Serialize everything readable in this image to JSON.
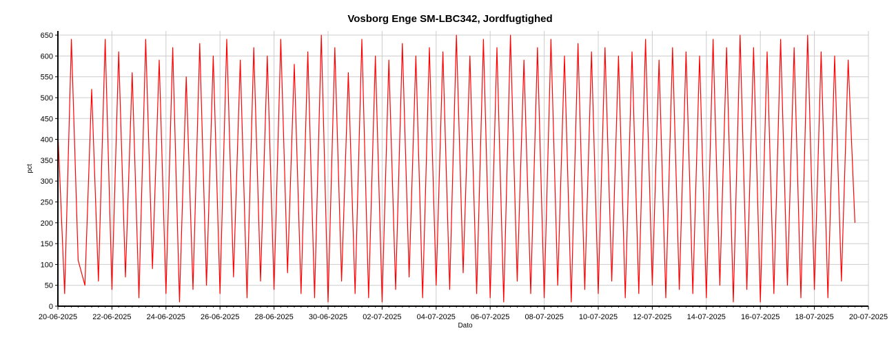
{
  "chart_data": {
    "type": "line",
    "title": "Vosborg Enge SM-LBC342, Jordfugtighed",
    "xlabel": "Dato",
    "ylabel": "pct",
    "ylim": [
      0,
      660
    ],
    "yticks": [
      0,
      50,
      100,
      150,
      200,
      250,
      300,
      350,
      400,
      450,
      500,
      550,
      600,
      650
    ],
    "xlim": [
      "2025-06-20",
      "2025-07-20"
    ],
    "xticks": [
      "2025-06-20",
      "2025-06-22",
      "2025-06-24",
      "2025-06-26",
      "2025-06-28",
      "2025-06-30",
      "2025-07-02",
      "2025-07-04",
      "2025-07-06",
      "2025-07-08",
      "2025-07-10",
      "2025-07-12",
      "2025-07-14",
      "2025-07-16",
      "2025-07-18",
      "2025-07-20"
    ],
    "xtick_labels": [
      "20-06-2025",
      "22-06-2025",
      "24-06-2025",
      "26-06-2025",
      "28-06-2025",
      "30-06-2025",
      "02-07-2025",
      "04-07-2025",
      "06-07-2025",
      "08-07-2025",
      "10-07-2025",
      "12-07-2025",
      "14-07-2025",
      "16-07-2025",
      "18-07-2025",
      "20-07-2025"
    ],
    "grid": true,
    "series": [
      {
        "color": "#ff0000",
        "x": [
          "2025-06-20T00:00",
          "2025-06-20T06:00",
          "2025-06-20T12:00",
          "2025-06-20T18:00",
          "2025-06-21T00:00",
          "2025-06-21T06:00",
          "2025-06-21T12:00",
          "2025-06-21T18:00",
          "2025-06-22T00:00",
          "2025-06-22T06:00",
          "2025-06-22T12:00",
          "2025-06-22T18:00",
          "2025-06-23T00:00",
          "2025-06-23T06:00",
          "2025-06-23T12:00",
          "2025-06-23T18:00",
          "2025-06-24T00:00",
          "2025-06-24T06:00",
          "2025-06-24T12:00",
          "2025-06-24T18:00",
          "2025-06-25T00:00",
          "2025-06-25T06:00",
          "2025-06-25T12:00",
          "2025-06-25T18:00",
          "2025-06-26T00:00",
          "2025-06-26T06:00",
          "2025-06-26T12:00",
          "2025-06-26T18:00",
          "2025-06-27T00:00",
          "2025-06-27T06:00",
          "2025-06-27T12:00",
          "2025-06-27T18:00",
          "2025-06-28T00:00",
          "2025-06-28T06:00",
          "2025-06-28T12:00",
          "2025-06-28T18:00",
          "2025-06-29T00:00",
          "2025-06-29T06:00",
          "2025-06-29T12:00",
          "2025-06-29T18:00",
          "2025-06-30T00:00",
          "2025-06-30T06:00",
          "2025-06-30T12:00",
          "2025-06-30T18:00",
          "2025-07-01T00:00",
          "2025-07-01T06:00",
          "2025-07-01T12:00",
          "2025-07-01T18:00",
          "2025-07-02T00:00",
          "2025-07-02T06:00",
          "2025-07-02T12:00",
          "2025-07-02T18:00",
          "2025-07-03T00:00",
          "2025-07-03T06:00",
          "2025-07-03T12:00",
          "2025-07-03T18:00",
          "2025-07-04T00:00",
          "2025-07-04T06:00",
          "2025-07-04T12:00",
          "2025-07-04T18:00",
          "2025-07-05T00:00",
          "2025-07-05T06:00",
          "2025-07-05T12:00",
          "2025-07-05T18:00",
          "2025-07-06T00:00",
          "2025-07-06T06:00",
          "2025-07-06T12:00",
          "2025-07-06T18:00",
          "2025-07-07T00:00",
          "2025-07-07T06:00",
          "2025-07-07T12:00",
          "2025-07-07T18:00",
          "2025-07-08T00:00",
          "2025-07-08T06:00",
          "2025-07-08T12:00",
          "2025-07-08T18:00",
          "2025-07-09T00:00",
          "2025-07-09T06:00",
          "2025-07-09T12:00",
          "2025-07-09T18:00",
          "2025-07-10T00:00",
          "2025-07-10T06:00",
          "2025-07-10T12:00",
          "2025-07-10T18:00",
          "2025-07-11T00:00",
          "2025-07-11T06:00",
          "2025-07-11T12:00",
          "2025-07-11T18:00",
          "2025-07-12T00:00",
          "2025-07-12T06:00",
          "2025-07-12T12:00",
          "2025-07-12T18:00",
          "2025-07-13T00:00",
          "2025-07-13T06:00",
          "2025-07-13T12:00",
          "2025-07-13T18:00",
          "2025-07-14T00:00",
          "2025-07-14T06:00",
          "2025-07-14T12:00",
          "2025-07-14T18:00",
          "2025-07-15T00:00",
          "2025-07-15T06:00",
          "2025-07-15T12:00",
          "2025-07-15T18:00",
          "2025-07-16T00:00",
          "2025-07-16T06:00",
          "2025-07-16T12:00",
          "2025-07-16T18:00",
          "2025-07-17T00:00",
          "2025-07-17T06:00",
          "2025-07-17T12:00",
          "2025-07-17T18:00",
          "2025-07-18T00:00",
          "2025-07-18T06:00",
          "2025-07-18T12:00",
          "2025-07-18T18:00",
          "2025-07-19T00:00",
          "2025-07-19T06:00",
          "2025-07-19T12:00"
        ],
        "y": [
          420,
          30,
          640,
          110,
          50,
          520,
          60,
          640,
          40,
          610,
          70,
          560,
          20,
          640,
          90,
          590,
          30,
          620,
          10,
          550,
          40,
          630,
          50,
          600,
          30,
          640,
          70,
          590,
          20,
          620,
          60,
          600,
          40,
          640,
          80,
          580,
          30,
          610,
          20,
          650,
          10,
          620,
          60,
          560,
          30,
          640,
          20,
          600,
          10,
          590,
          40,
          630,
          70,
          600,
          20,
          620,
          50,
          610,
          40,
          650,
          80,
          600,
          30,
          640,
          20,
          620,
          10,
          650,
          60,
          590,
          30,
          620,
          20,
          640,
          50,
          600,
          10,
          630,
          40,
          610,
          30,
          620,
          60,
          600,
          20,
          610,
          30,
          640,
          50,
          590,
          20,
          620,
          40,
          610,
          30,
          600,
          20,
          640,
          50,
          620,
          10,
          650,
          40,
          620,
          10,
          610,
          30,
          640,
          50,
          620,
          20,
          650,
          40,
          610,
          20,
          600,
          60,
          590,
          200
        ]
      }
    ]
  }
}
